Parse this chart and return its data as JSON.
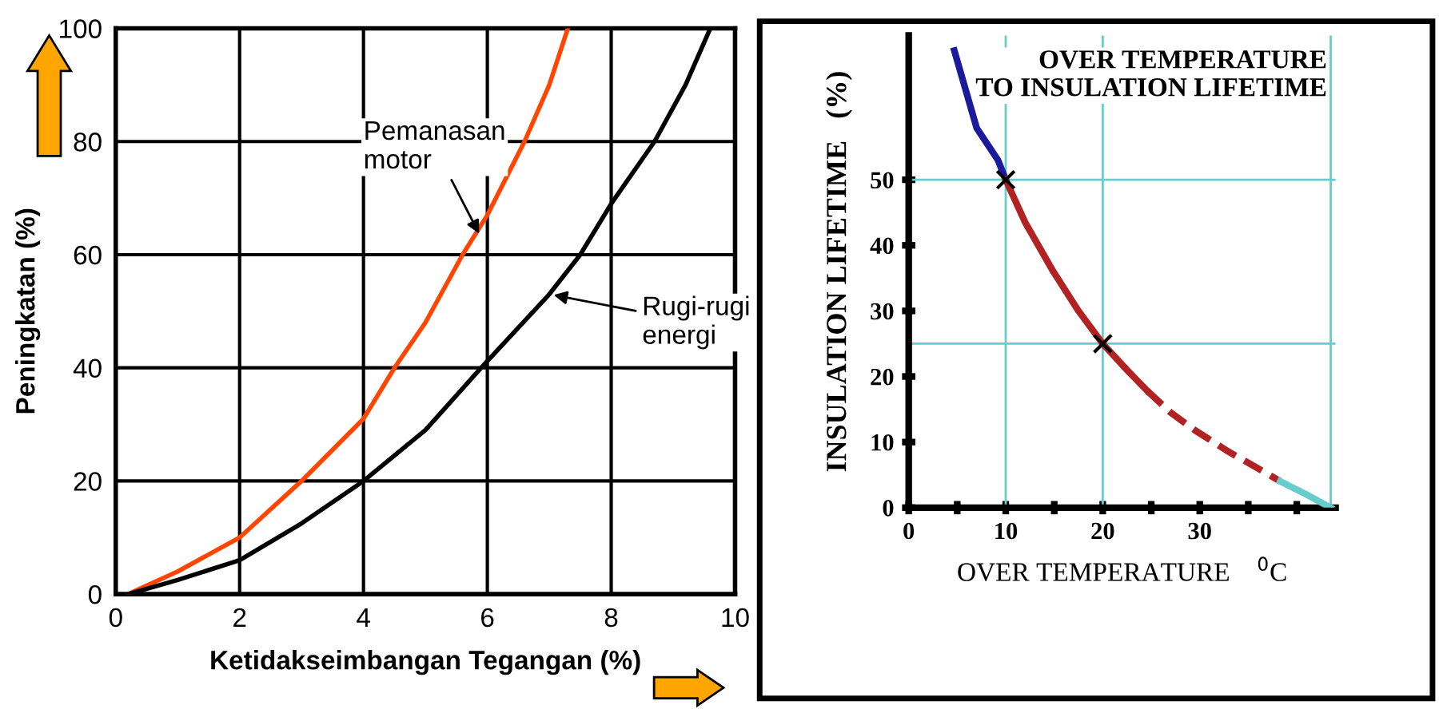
{
  "chart_data": [
    {
      "type": "line",
      "xlabel": "Ketidakseimbangan Tegangan (%)",
      "ylabel": "Peningkatan (%)",
      "xlim": [
        0,
        10
      ],
      "ylim": [
        0,
        100
      ],
      "xticks": [
        0,
        2,
        4,
        6,
        8,
        10
      ],
      "yticks": [
        0,
        20,
        40,
        60,
        80,
        100
      ],
      "grid": true,
      "series": [
        {
          "color": "#ff4500",
          "x": [
            0.2,
            1,
            2,
            3,
            4,
            4.5,
            5,
            5.6,
            6,
            6.6,
            7,
            7.3
          ],
          "values": [
            0,
            4,
            10,
            20,
            31,
            40,
            48,
            60,
            67,
            80,
            90,
            100
          ]
        },
        {
          "color": "#000000",
          "x": [
            0.2,
            1,
            2,
            3,
            4,
            5,
            5.9,
            7,
            7.5,
            8,
            8.7,
            9.2,
            9.6
          ],
          "values": [
            0,
            2.5,
            6,
            12.5,
            20,
            29,
            40,
            53,
            60,
            69,
            80,
            90,
            100
          ]
        }
      ],
      "annotations": [
        {
          "text": "Pemanasan\nmotor",
          "x": 5.9,
          "y": 63
        },
        {
          "text": "Rugi-rugi\nenergi",
          "x": 7,
          "y": 53
        }
      ]
    },
    {
      "type": "line",
      "title": "OVER TEMPERATURE\nTO INSULATION LIFETIME",
      "xlabel": "OVER TEMPERATURE    $^{0}$C",
      "ylabel": "INSULATION LIFETIME   (%)",
      "xlim": [
        0,
        44
      ],
      "ylim": [
        0,
        72
      ],
      "xticks": [
        0,
        {
          "value": 5,
          "label": null
        },
        10,
        {
          "value": 15,
          "label": null
        },
        20,
        {
          "value": 25,
          "label": null
        },
        30,
        {
          "value": 35,
          "label": null
        },
        {
          "value": 40,
          "label": null
        }
      ],
      "yticks": [
        0,
        10,
        20,
        30,
        40,
        50
      ],
      "grid": false,
      "series": [
        {
          "color": "#1a1a9a",
          "x": [
            4.7,
            7.0,
            9.2,
            10
          ],
          "values": [
            69.7,
            57.9,
            53,
            50
          ]
        },
        {
          "color": "#b22222",
          "x": [
            10,
            12,
            14.9,
            17.5,
            20,
            22.5,
            24.6
          ],
          "values": [
            50,
            43.5,
            36,
            30,
            25,
            21,
            17.8
          ]
        },
        {
          "color": "#b22222",
          "line_style": "dashed",
          "x": [
            24.6,
            27,
            29.5,
            33,
            36,
            38.3
          ],
          "values": [
            17.8,
            14.5,
            11.8,
            8.5,
            6,
            4
          ]
        },
        {
          "color": "#66cccc",
          "x": [
            38.3,
            41,
            43.5
          ],
          "values": [
            4,
            2,
            0
          ]
        },
        {
          "type": "scatter",
          "color": "#000000",
          "marker": "cross",
          "x": [
            10,
            20
          ],
          "values": [
            50,
            25
          ]
        }
      ],
      "ref_lines": [
        {
          "axis": "y",
          "value": 50,
          "color": "#66cccc"
        },
        {
          "axis": "y",
          "value": 25,
          "color": "#66cccc"
        },
        {
          "axis": "x",
          "value": 10,
          "color": "#66cccc"
        },
        {
          "axis": "x",
          "value": 20,
          "color": "#66cccc"
        },
        {
          "axis": "x",
          "value": 43.5,
          "color": "#66cccc"
        }
      ]
    }
  ]
}
